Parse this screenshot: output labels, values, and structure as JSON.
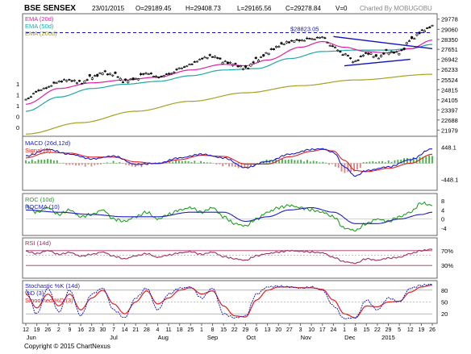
{
  "header": {
    "title": "BSE SENSEX",
    "date": "23/01/2015",
    "open": "O=29189.45",
    "high": "H=29408.73",
    "low": "L=29165.56",
    "close": "C=29278.84",
    "volume": "V=0",
    "charted_by": "Charted By MOBUGOBU"
  },
  "footer": {
    "copyright": "Copyright © 2015 ChartNexus"
  },
  "colors": {
    "background": "#ffffff",
    "frame": "#666666",
    "price_up": "#000000",
    "ema20": "#e020a0",
    "ema50": "#20a8a8",
    "ema200": "#a8a020",
    "trendline": "#1010c0",
    "macd": "#1a1ad0",
    "signal": "#e02020",
    "hist_pos": "#40b040",
    "hist_neg": "#e08080",
    "roc": "#20a020",
    "rocma": "#2020c0",
    "rsi": "#a03060",
    "stoch_k": "#2020c0",
    "stoch_d": "#e02020"
  },
  "chart_data": [
    {
      "type": "line",
      "panel": "price",
      "legend": [
        "EMA (20d)",
        "EMA (50d)",
        "EMA (200d)"
      ],
      "y_ticks": [
        29778,
        29060,
        28350,
        27651,
        26942,
        26233,
        25524,
        24815,
        24105,
        23397,
        22688,
        21979
      ],
      "ylim": [
        21600,
        30100
      ],
      "left_axis_marks": [
        "1",
        "1",
        "1",
        "0",
        "0"
      ],
      "annotation": "$28823.05",
      "annotation_value": 28823.05,
      "x_ticks": [
        "12",
        "19",
        "26",
        "2",
        "9",
        "16",
        "23",
        "30",
        "7",
        "14",
        "21",
        "28",
        "4",
        "11",
        "18",
        "25",
        "1",
        "8",
        "15",
        "22",
        "29",
        "6",
        "13",
        "20",
        "27",
        "3",
        "10",
        "17",
        "24",
        "1",
        "8",
        "15",
        "22",
        "29",
        "5",
        "12",
        "19",
        "26"
      ],
      "months": [
        {
          "label": "Jun",
          "at": 0.5
        },
        {
          "label": "Jul",
          "at": 8
        },
        {
          "label": "Aug",
          "at": 12.5
        },
        {
          "label": "Sep",
          "at": 17
        },
        {
          "label": "Oct",
          "at": 20.5
        },
        {
          "label": "Nov",
          "at": 25.5
        },
        {
          "label": "Dec",
          "at": 29.5
        },
        {
          "label": "2015",
          "at": 33
        }
      ],
      "close_keypoints": [
        [
          0,
          24100
        ],
        [
          1,
          24700
        ],
        [
          2,
          25000
        ],
        [
          3,
          25400
        ],
        [
          4,
          25500
        ],
        [
          5,
          25300
        ],
        [
          6,
          25700
        ],
        [
          7,
          26000
        ],
        [
          8,
          25900
        ],
        [
          9,
          25400
        ],
        [
          10,
          25600
        ],
        [
          11,
          26000
        ],
        [
          12,
          25700
        ],
        [
          13,
          25900
        ],
        [
          14,
          26300
        ],
        [
          15,
          26600
        ],
        [
          16,
          27000
        ],
        [
          17,
          27200
        ],
        [
          18,
          26800
        ],
        [
          19,
          26600
        ],
        [
          20,
          26300
        ],
        [
          21,
          26900
        ],
        [
          22,
          27400
        ],
        [
          23,
          27900
        ],
        [
          24,
          28200
        ],
        [
          25,
          28300
        ],
        [
          26,
          28400
        ],
        [
          27,
          28500
        ],
        [
          28,
          27800
        ],
        [
          29,
          27300
        ],
        [
          30,
          26800
        ],
        [
          31,
          27400
        ],
        [
          32,
          27100
        ],
        [
          33,
          27500
        ],
        [
          34,
          27400
        ],
        [
          35,
          28300
        ],
        [
          36,
          28900
        ],
        [
          37,
          29300
        ]
      ],
      "ema20_keypoints": [
        [
          0,
          23800
        ],
        [
          3,
          24900
        ],
        [
          6,
          25300
        ],
        [
          9,
          25500
        ],
        [
          12,
          25700
        ],
        [
          15,
          26200
        ],
        [
          18,
          26600
        ],
        [
          20,
          26500
        ],
        [
          22,
          26900
        ],
        [
          25,
          27800
        ],
        [
          27,
          28200
        ],
        [
          29,
          27800
        ],
        [
          31,
          27500
        ],
        [
          33,
          27400
        ],
        [
          35,
          27700
        ],
        [
          37,
          28300
        ]
      ],
      "ema50_keypoints": [
        [
          0,
          23300
        ],
        [
          3,
          24300
        ],
        [
          6,
          24900
        ],
        [
          9,
          25200
        ],
        [
          12,
          25400
        ],
        [
          15,
          25800
        ],
        [
          18,
          26200
        ],
        [
          21,
          26300
        ],
        [
          24,
          27000
        ],
        [
          27,
          27500
        ],
        [
          30,
          27600
        ],
        [
          33,
          27600
        ],
        [
          35,
          27700
        ],
        [
          37,
          28000
        ]
      ],
      "ema200_keypoints": [
        [
          0,
          21700
        ],
        [
          5,
          22500
        ],
        [
          10,
          23300
        ],
        [
          15,
          24000
        ],
        [
          20,
          24600
        ],
        [
          25,
          25100
        ],
        [
          30,
          25500
        ],
        [
          37,
          25900
        ]
      ],
      "trend_upper": [
        [
          28,
          28550
        ],
        [
          37,
          27700
        ]
      ],
      "trend_lower": [
        [
          29,
          26500
        ],
        [
          35,
          26950
        ]
      ]
    },
    {
      "type": "bar",
      "panel": "macd",
      "legend": [
        "MACD (26d,12d)",
        "Signal (9)"
      ],
      "y_ticks": [
        "448.1",
        "-448.1"
      ],
      "ylim": [
        -700,
        700
      ],
      "macd_keypoints": [
        [
          0,
          200
        ],
        [
          2,
          380
        ],
        [
          4,
          250
        ],
        [
          6,
          120
        ],
        [
          8,
          200
        ],
        [
          10,
          -30
        ],
        [
          12,
          0
        ],
        [
          14,
          150
        ],
        [
          16,
          250
        ],
        [
          18,
          150
        ],
        [
          20,
          -120
        ],
        [
          22,
          50
        ],
        [
          24,
          250
        ],
        [
          26,
          380
        ],
        [
          27,
          400
        ],
        [
          28,
          300
        ],
        [
          29,
          -100
        ],
        [
          30,
          -350
        ],
        [
          31,
          -200
        ],
        [
          33,
          -100
        ],
        [
          35,
          100
        ],
        [
          37,
          400
        ]
      ],
      "signal_keypoints": [
        [
          0,
          150
        ],
        [
          2,
          300
        ],
        [
          4,
          280
        ],
        [
          6,
          170
        ],
        [
          8,
          170
        ],
        [
          10,
          40
        ],
        [
          12,
          -10
        ],
        [
          14,
          100
        ],
        [
          16,
          220
        ],
        [
          18,
          190
        ],
        [
          20,
          -20
        ],
        [
          22,
          -20
        ],
        [
          24,
          180
        ],
        [
          26,
          330
        ],
        [
          27,
          380
        ],
        [
          28,
          340
        ],
        [
          29,
          80
        ],
        [
          30,
          -200
        ],
        [
          31,
          -230
        ],
        [
          33,
          -140
        ],
        [
          35,
          0
        ],
        [
          37,
          250
        ]
      ]
    },
    {
      "type": "line",
      "panel": "roc",
      "legend": [
        "ROC (10d)",
        "ROCMA (10)"
      ],
      "y_ticks": [
        "8",
        "4",
        "0",
        "-4"
      ],
      "ylim": [
        -6.5,
        10.5
      ],
      "roc_keypoints": [
        [
          0,
          6
        ],
        [
          1,
          3
        ],
        [
          2,
          5
        ],
        [
          3,
          2
        ],
        [
          4,
          4
        ],
        [
          5,
          1
        ],
        [
          6,
          2
        ],
        [
          7,
          4
        ],
        [
          8,
          0
        ],
        [
          9,
          -1
        ],
        [
          10,
          1
        ],
        [
          11,
          3
        ],
        [
          12,
          0
        ],
        [
          13,
          2
        ],
        [
          14,
          4
        ],
        [
          15,
          5
        ],
        [
          16,
          3
        ],
        [
          17,
          5
        ],
        [
          18,
          1
        ],
        [
          19,
          -2
        ],
        [
          20,
          -3
        ],
        [
          21,
          0
        ],
        [
          22,
          3
        ],
        [
          23,
          5
        ],
        [
          24,
          6
        ],
        [
          25,
          5
        ],
        [
          26,
          4
        ],
        [
          27,
          3
        ],
        [
          28,
          1
        ],
        [
          29,
          -4
        ],
        [
          30,
          -5
        ],
        [
          31,
          -2
        ],
        [
          32,
          0
        ],
        [
          33,
          -1
        ],
        [
          34,
          1
        ],
        [
          35,
          3
        ],
        [
          36,
          7
        ],
        [
          37,
          6
        ]
      ],
      "rocma_keypoints": [
        [
          0,
          4
        ],
        [
          3,
          3
        ],
        [
          6,
          2
        ],
        [
          9,
          1
        ],
        [
          12,
          1
        ],
        [
          15,
          3
        ],
        [
          18,
          3
        ],
        [
          20,
          -1
        ],
        [
          22,
          1
        ],
        [
          24,
          4
        ],
        [
          26,
          5
        ],
        [
          28,
          3
        ],
        [
          30,
          -2
        ],
        [
          32,
          -2
        ],
        [
          34,
          0
        ],
        [
          36,
          2
        ],
        [
          37,
          3
        ]
      ]
    },
    {
      "type": "line",
      "panel": "rsi",
      "legend": [
        "RSI (14d)"
      ],
      "y_ticks": [
        "70%",
        "30%"
      ],
      "ylim": [
        0,
        100
      ],
      "rsi_keypoints": [
        [
          0,
          68
        ],
        [
          1,
          62
        ],
        [
          2,
          70
        ],
        [
          3,
          60
        ],
        [
          4,
          65
        ],
        [
          5,
          55
        ],
        [
          6,
          60
        ],
        [
          7,
          66
        ],
        [
          8,
          55
        ],
        [
          9,
          48
        ],
        [
          10,
          56
        ],
        [
          11,
          62
        ],
        [
          12,
          52
        ],
        [
          13,
          58
        ],
        [
          14,
          64
        ],
        [
          15,
          67
        ],
        [
          16,
          60
        ],
        [
          17,
          66
        ],
        [
          18,
          54
        ],
        [
          19,
          48
        ],
        [
          20,
          44
        ],
        [
          21,
          56
        ],
        [
          22,
          62
        ],
        [
          23,
          66
        ],
        [
          24,
          70
        ],
        [
          25,
          68
        ],
        [
          26,
          66
        ],
        [
          27,
          64
        ],
        [
          28,
          52
        ],
        [
          29,
          40
        ],
        [
          30,
          36
        ],
        [
          31,
          48
        ],
        [
          32,
          44
        ],
        [
          33,
          50
        ],
        [
          34,
          52
        ],
        [
          35,
          62
        ],
        [
          36,
          70
        ],
        [
          37,
          74
        ]
      ]
    },
    {
      "type": "line",
      "panel": "stochastic",
      "legend": [
        "Stochastic %K (14d)",
        "%D (3)",
        "Smoothed %D (3)"
      ],
      "y_ticks": [
        "80",
        "50",
        "20"
      ],
      "ylim": [
        0,
        100
      ],
      "k_keypoints": [
        [
          0,
          80
        ],
        [
          1,
          20
        ],
        [
          2,
          85
        ],
        [
          3,
          25
        ],
        [
          4,
          80
        ],
        [
          5,
          15
        ],
        [
          6,
          70
        ],
        [
          7,
          85
        ],
        [
          8,
          30
        ],
        [
          9,
          10
        ],
        [
          10,
          60
        ],
        [
          11,
          85
        ],
        [
          12,
          30
        ],
        [
          13,
          70
        ],
        [
          14,
          85
        ],
        [
          15,
          88
        ],
        [
          16,
          60
        ],
        [
          17,
          85
        ],
        [
          18,
          20
        ],
        [
          19,
          10
        ],
        [
          20,
          15
        ],
        [
          21,
          70
        ],
        [
          22,
          88
        ],
        [
          23,
          90
        ],
        [
          24,
          88
        ],
        [
          25,
          85
        ],
        [
          26,
          88
        ],
        [
          27,
          80
        ],
        [
          28,
          40
        ],
        [
          29,
          8
        ],
        [
          30,
          10
        ],
        [
          31,
          55
        ],
        [
          32,
          30
        ],
        [
          33,
          60
        ],
        [
          34,
          50
        ],
        [
          35,
          85
        ],
        [
          36,
          92
        ],
        [
          37,
          95
        ]
      ],
      "d_keypoints": [
        [
          0,
          70
        ],
        [
          1,
          35
        ],
        [
          2,
          70
        ],
        [
          3,
          40
        ],
        [
          4,
          70
        ],
        [
          5,
          30
        ],
        [
          6,
          60
        ],
        [
          7,
          80
        ],
        [
          8,
          45
        ],
        [
          9,
          20
        ],
        [
          10,
          50
        ],
        [
          11,
          78
        ],
        [
          12,
          45
        ],
        [
          13,
          60
        ],
        [
          14,
          80
        ],
        [
          15,
          86
        ],
        [
          16,
          70
        ],
        [
          17,
          78
        ],
        [
          18,
          40
        ],
        [
          19,
          15
        ],
        [
          20,
          12
        ],
        [
          21,
          55
        ],
        [
          22,
          80
        ],
        [
          23,
          88
        ],
        [
          24,
          88
        ],
        [
          25,
          86
        ],
        [
          26,
          86
        ],
        [
          27,
          82
        ],
        [
          28,
          55
        ],
        [
          29,
          20
        ],
        [
          30,
          10
        ],
        [
          31,
          40
        ],
        [
          32,
          38
        ],
        [
          33,
          50
        ],
        [
          34,
          52
        ],
        [
          35,
          75
        ],
        [
          36,
          88
        ],
        [
          37,
          93
        ]
      ]
    }
  ]
}
